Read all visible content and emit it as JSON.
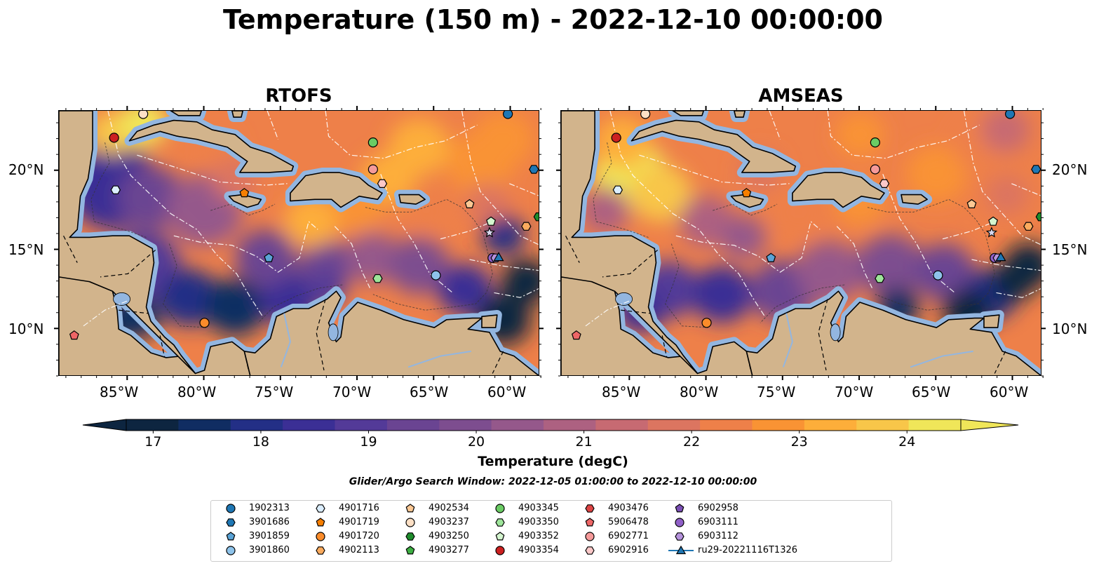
{
  "title": "Temperature (150 m) - 2022-12-10 00:00:00",
  "panels": [
    {
      "title": "RTOFS"
    },
    {
      "title": "AMSEAS"
    }
  ],
  "lon_ticks": [
    "85°W",
    "80°W",
    "75°W",
    "70°W",
    "65°W",
    "60°W"
  ],
  "lat_ticks": [
    "20°N",
    "15°N",
    "10°N"
  ],
  "map_extent": {
    "lon": [
      -89.5,
      -58.1
    ],
    "lat": [
      7.0,
      23.8
    ]
  },
  "colorbar": {
    "label": "Temperature (degC)",
    "ticks": [
      "17",
      "18",
      "19",
      "20",
      "21",
      "22",
      "23",
      "24"
    ],
    "range": [
      16.75,
      24.5
    ],
    "colors": [
      "#0d2540",
      "#102d62",
      "#232f86",
      "#3b2f95",
      "#533a98",
      "#6a4492",
      "#7d4d8f",
      "#95588b",
      "#ad6181",
      "#c76a72",
      "#dc7560",
      "#ee8049",
      "#f99334",
      "#fdae3a",
      "#f8c649",
      "#f0e659"
    ]
  },
  "search_window": "Glider/Argo Search Window: 2022-12-05 01:00:00 to 2022-12-10 00:00:00",
  "legend": [
    {
      "label": "1902313",
      "marker": "circle",
      "color": "#1f77b4"
    },
    {
      "label": "3901686",
      "marker": "hexagon",
      "color": "#1f77b4"
    },
    {
      "label": "3901859",
      "marker": "pentagon",
      "color": "#5aa3d6"
    },
    {
      "label": "3901860",
      "marker": "circle",
      "color": "#8ec3ea"
    },
    {
      "label": "4901716",
      "marker": "hexagon",
      "color": "#dbeeff"
    },
    {
      "label": "4901719",
      "marker": "pentagon",
      "color": "#f77f00"
    },
    {
      "label": "4901720",
      "marker": "circle",
      "color": "#fb8c2a"
    },
    {
      "label": "4902113",
      "marker": "hexagon",
      "color": "#fbab5e"
    },
    {
      "label": "4902534",
      "marker": "pentagon",
      "color": "#fcc894"
    },
    {
      "label": "4903237",
      "marker": "circle",
      "color": "#fde0c5"
    },
    {
      "label": "4903250",
      "marker": "hexagon",
      "color": "#1e8c2c"
    },
    {
      "label": "4903277",
      "marker": "pentagon",
      "color": "#3daf42"
    },
    {
      "label": "4903345",
      "marker": "circle",
      "color": "#6acc64"
    },
    {
      "label": "4903350",
      "marker": "hexagon",
      "color": "#9ee59a"
    },
    {
      "label": "4903352",
      "marker": "pentagon",
      "color": "#d4f5cf"
    },
    {
      "label": "4903354",
      "marker": "circle",
      "color": "#cc2020"
    },
    {
      "label": "4903476",
      "marker": "hexagon",
      "color": "#dd4444"
    },
    {
      "label": "5906478",
      "marker": "pentagon",
      "color": "#ee6666"
    },
    {
      "label": "6902771",
      "marker": "circle",
      "color": "#f59a9a"
    },
    {
      "label": "6902916",
      "marker": "hexagon",
      "color": "#fbc8c8"
    },
    {
      "label": "6902958",
      "marker": "pentagon",
      "color": "#7b4fb5"
    },
    {
      "label": "6903111",
      "marker": "circle",
      "color": "#9060c8"
    },
    {
      "label": "6903112",
      "marker": "hexagon",
      "color": "#b592dc"
    },
    {
      "label": "ru29-20221116T1326",
      "marker": "triangle-line",
      "color": "#1f77b4"
    }
  ],
  "colors": {
    "land": "#d2b48c",
    "shelf": "#93b6e0",
    "coast": "#000000"
  }
}
